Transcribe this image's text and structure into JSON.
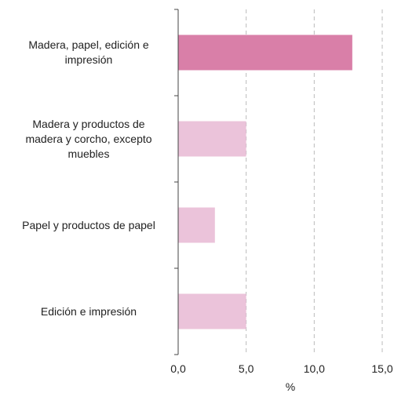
{
  "chart_data": {
    "type": "bar",
    "orientation": "horizontal",
    "categories": [
      "Madera, papel, edición e impresión",
      "Madera y productos de madera y corcho, excepto muebles",
      "Papel y productos de papel",
      "Edición e impresión"
    ],
    "category_lines": [
      [
        "Madera, papel, edición e",
        "impresión"
      ],
      [
        "Madera y productos de",
        "madera y corcho, excepto",
        "muebles"
      ],
      [
        "Papel y productos de papel"
      ],
      [
        "Edición e impresión"
      ]
    ],
    "values": [
      12.8,
      5.0,
      2.7,
      5.0
    ],
    "colors": [
      "#d97fa8",
      "#ebc3da",
      "#ebc3da",
      "#ebc3da"
    ],
    "xlabel": "%",
    "xlim": [
      0,
      15
    ],
    "xticks": [
      "0,0",
      "5,0",
      "10,0",
      "15,0"
    ],
    "grid": true
  }
}
